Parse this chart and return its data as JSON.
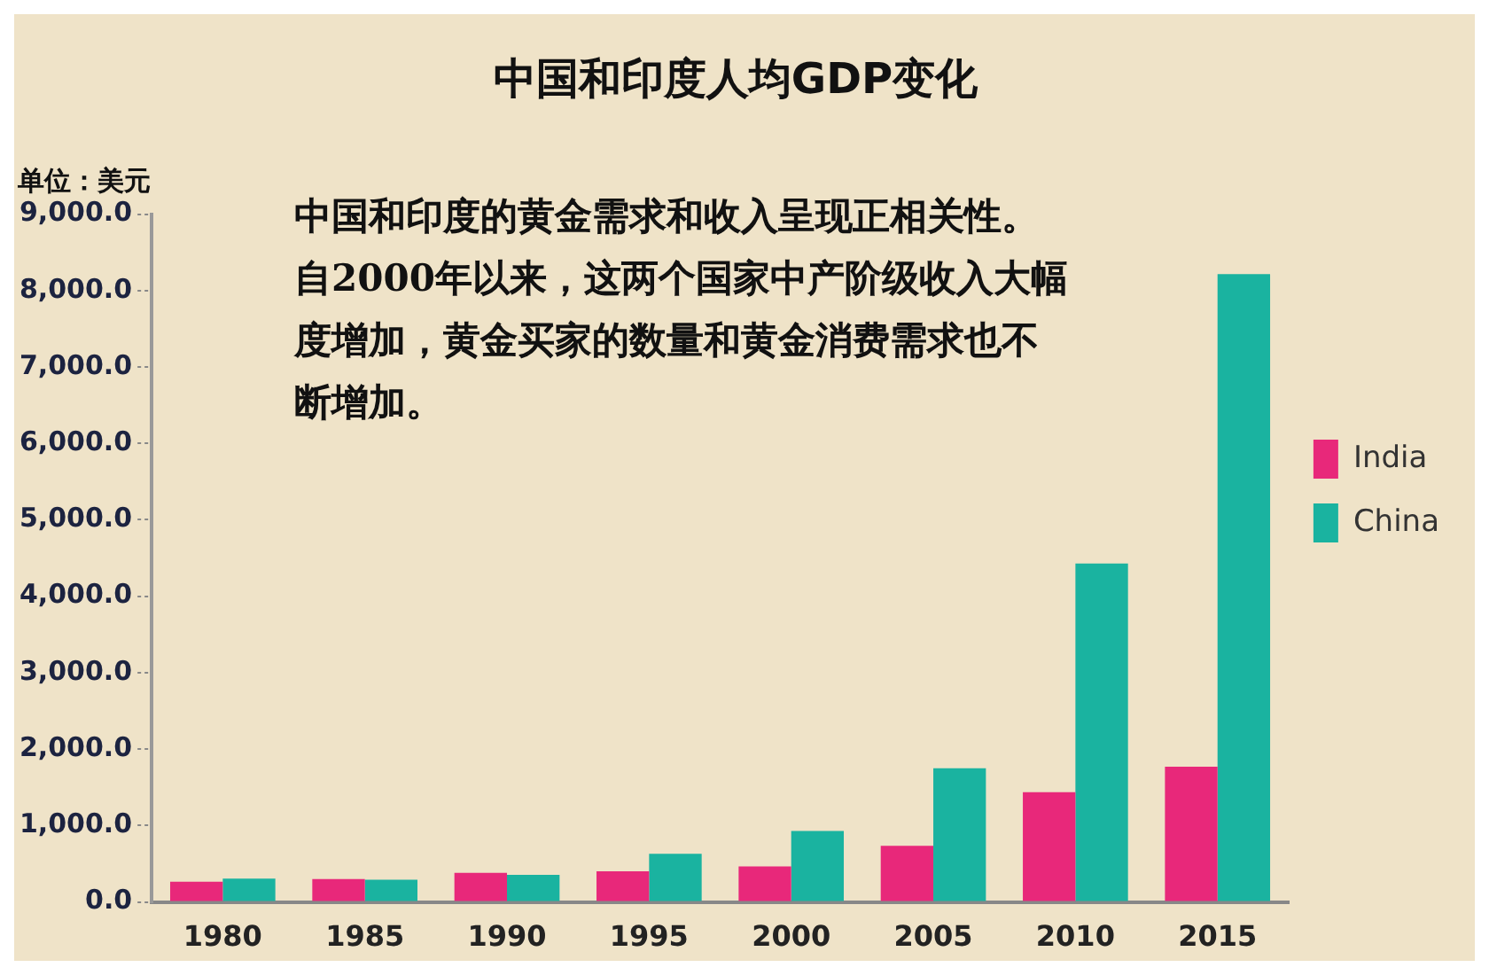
{
  "chart_data": {
    "type": "bar",
    "title": "中国和印度人均GDP变化",
    "ylabel": "单位：美元",
    "categories": [
      "1980",
      "1985",
      "1990",
      "1995",
      "2000",
      "2005",
      "2010",
      "2015"
    ],
    "series": [
      {
        "name": "India",
        "color": "#e8287a",
        "values": [
          265,
          300,
          380,
          400,
          465,
          735,
          1435,
          1770
        ]
      },
      {
        "name": "China",
        "color": "#1ab3a0",
        "values": [
          305,
          290,
          355,
          630,
          930,
          1750,
          4430,
          8215
        ]
      }
    ],
    "ylim": [
      0,
      9000
    ],
    "yticks": [
      {
        "value": 0,
        "label": "0.0"
      },
      {
        "value": 1000,
        "label": "1,000.0"
      },
      {
        "value": 2000,
        "label": "2,000.0"
      },
      {
        "value": 3000,
        "label": "3,000.0"
      },
      {
        "value": 4000,
        "label": "4,000.0"
      },
      {
        "value": 5000,
        "label": "5,000.0"
      },
      {
        "value": 6000,
        "label": "6,000.0"
      },
      {
        "value": 7000,
        "label": "7,000.0"
      },
      {
        "value": 8000,
        "label": "8,000.0"
      },
      {
        "value": 9000,
        "label": "9,000.0"
      }
    ],
    "annotations": [
      "中国和印度的黄金需求和收入呈现正相关性。自2000年以来，这两个国家中产阶级收入大幅度增加，黄金买家的数量和黄金消费需求也不断增加。"
    ],
    "grid": false,
    "legend": "right"
  }
}
